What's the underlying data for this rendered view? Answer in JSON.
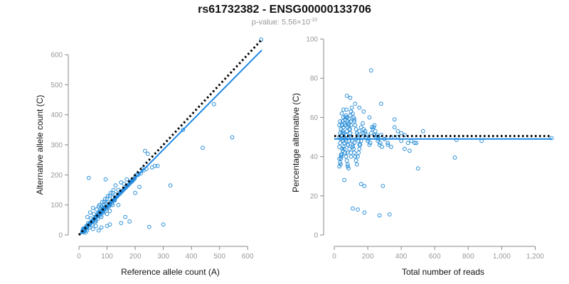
{
  "header": {
    "title": "rs61732382 - ENSG00000133706",
    "pvalue_prefix": "p-value: 5.56×10",
    "pvalue_exponent": "-10"
  },
  "colors": {
    "points": "#2b8fd8",
    "fit_line": "#1e88e5",
    "reference_line": "#000000",
    "axis": "#888888",
    "tick_text": "#999999"
  },
  "chart_data": [
    {
      "type": "scatter",
      "title": "",
      "xlabel": "Reference allele count (A)",
      "ylabel": "Alternative allele count (C)",
      "xlim": [
        0,
        650
      ],
      "ylim": [
        0,
        600
      ],
      "xticks": [
        0,
        100,
        200,
        300,
        400,
        500,
        600
      ],
      "xtick_labels": [
        "0",
        "100",
        "200",
        "300",
        "400",
        "500",
        "600"
      ],
      "yticks": [
        0,
        100,
        200,
        300,
        400,
        500,
        600
      ],
      "ytick_labels": [
        "0",
        "100",
        "200",
        "300",
        "400",
        "500",
        "600"
      ],
      "grid": false,
      "reference_line": {
        "style": "dotted",
        "x": [
          0,
          650
        ],
        "y": [
          0,
          650
        ]
      },
      "fit_line": {
        "x": [
          0,
          650
        ],
        "y": [
          0,
          615
        ]
      },
      "points": {
        "x": [
          648,
          480,
          545,
          440,
          370,
          250,
          300,
          325,
          280,
          240,
          235,
          245,
          210,
          220,
          200,
          170,
          190,
          150,
          160,
          130,
          140,
          120,
          110,
          100,
          105,
          95,
          90,
          80,
          85,
          75,
          70,
          65,
          60,
          55,
          50,
          45,
          40,
          35,
          30,
          25,
          20,
          15,
          12,
          35,
          95,
          60,
          110,
          150,
          165,
          180,
          200,
          215,
          230,
          260,
          270,
          50,
          70,
          80,
          100,
          120,
          130,
          140,
          45,
          55,
          65,
          75,
          85,
          90,
          100,
          110,
          125,
          150,
          185,
          205,
          225,
          25,
          30,
          35,
          40,
          45,
          50,
          55,
          60,
          65,
          70,
          75,
          80,
          85,
          90,
          20,
          22,
          24,
          26,
          28,
          30,
          32,
          34,
          36,
          38,
          40,
          42,
          44,
          48,
          52,
          56,
          58,
          62,
          66,
          68,
          72,
          76,
          78,
          82,
          86,
          88,
          92,
          96,
          98,
          102,
          106,
          108,
          112,
          116,
          118,
          122,
          126,
          128,
          132,
          136,
          138,
          142,
          146,
          148,
          152,
          156,
          158,
          162,
          166,
          168,
          172,
          176,
          178,
          182,
          186,
          188,
          192,
          196,
          198,
          30,
          40,
          50,
          60,
          70,
          80,
          90,
          100,
          110,
          120,
          15,
          18,
          22,
          25,
          28,
          14,
          16,
          19,
          21,
          23,
          13,
          17,
          26,
          29,
          33,
          37,
          43,
          47,
          53,
          57,
          63,
          67,
          73,
          77,
          83,
          87,
          93,
          97,
          103,
          107,
          113,
          117,
          123,
          127
        ],
        "y": [
          650,
          435,
          325,
          290,
          350,
          27,
          35,
          165,
          230,
          220,
          280,
          270,
          200,
          205,
          195,
          185,
          180,
          175,
          170,
          165,
          150,
          140,
          130,
          120,
          110,
          105,
          100,
          95,
          90,
          80,
          75,
          68,
          62,
          55,
          50,
          45,
          40,
          35,
          30,
          25,
          20,
          15,
          12,
          190,
          185,
          30,
          35,
          40,
          60,
          45,
          140,
          160,
          215,
          225,
          230,
          20,
          15,
          25,
          30,
          125,
          135,
          100,
          42,
          50,
          62,
          70,
          78,
          85,
          92,
          100,
          115,
          145,
          180,
          200,
          220,
          22,
          28,
          33,
          38,
          44,
          49,
          55,
          60,
          66,
          71,
          76,
          82,
          87,
          92,
          17,
          19,
          21,
          24,
          26,
          28,
          30,
          32,
          34,
          36,
          38,
          40,
          42,
          46,
          50,
          54,
          56,
          59,
          63,
          65,
          69,
          72,
          74,
          78,
          82,
          84,
          88,
          91,
          93,
          97,
          101,
          103,
          106,
          110,
          112,
          116,
          119,
          121,
          125,
          129,
          131,
          135,
          138,
          140,
          144,
          148,
          150,
          154,
          157,
          159,
          163,
          167,
          169,
          173,
          176,
          178,
          182,
          186,
          188,
          60,
          75,
          90,
          45,
          95,
          60,
          110,
          70,
          80,
          100,
          10,
          14,
          18,
          20,
          24,
          18,
          22,
          12,
          16,
          8,
          10,
          20,
          30,
          15,
          40,
          25,
          55,
          35,
          70,
          45,
          85,
          55,
          100,
          65,
          110,
          75,
          120,
          85,
          130,
          95,
          140,
          105,
          150,
          115
        ]
      }
    },
    {
      "type": "scatter",
      "title": "",
      "xlabel": "Total number of reads",
      "ylabel": "Percentage alternative (C)",
      "xlim": [
        0,
        1300
      ],
      "ylim": [
        0,
        100
      ],
      "xticks": [
        0,
        200,
        400,
        600,
        800,
        1000,
        1200
      ],
      "xtick_labels": [
        "0",
        "200",
        "400",
        "600",
        "800",
        "1,000",
        "1,200"
      ],
      "yticks": [
        0,
        20,
        40,
        60,
        80,
        100
      ],
      "ytick_labels": [
        "0",
        "20",
        "40",
        "60",
        "80",
        "100"
      ],
      "grid": false,
      "reference_line": {
        "style": "dotted",
        "x": [
          0,
          1300
        ],
        "y": [
          50.5,
          50.5
        ]
      },
      "fit_line": {
        "x": [
          0,
          1300
        ],
        "y": [
          49,
          49
        ]
      },
      "points": {
        "x": [
          1298,
          880,
          730,
          720,
          530,
          500,
          480,
          460,
          440,
          420,
          400,
          380,
          360,
          340,
          320,
          300,
          280,
          260,
          240,
          220,
          200,
          180,
          160,
          140,
          120,
          100,
          80,
          60,
          40,
          30,
          225,
          270,
          330,
          290,
          180,
          110,
          210,
          175,
          150,
          125,
          95,
          75,
          55,
          45,
          35,
          30,
          40,
          50,
          60,
          70,
          80,
          90,
          100,
          110,
          120,
          130,
          140,
          150,
          160,
          170,
          180,
          190,
          200,
          210,
          220,
          230,
          240,
          250,
          260,
          270,
          280,
          300,
          320,
          340,
          360,
          380,
          400,
          420,
          450,
          490,
          30,
          35,
          40,
          45,
          50,
          55,
          60,
          65,
          70,
          75,
          80,
          85,
          90,
          95,
          100,
          105,
          110,
          115,
          120,
          125,
          130,
          135,
          140,
          145,
          150,
          155,
          160,
          165,
          170,
          175,
          185,
          195,
          205,
          215,
          235,
          245,
          255,
          265,
          275,
          285,
          30,
          35,
          40,
          45,
          50,
          55,
          60,
          65,
          70,
          75,
          80,
          85,
          90,
          95,
          100,
          105,
          110,
          115,
          120,
          125,
          130,
          135,
          140,
          145,
          150,
          30,
          35,
          40,
          45,
          50,
          55,
          60,
          65,
          70,
          75,
          80,
          85,
          90,
          95,
          100,
          38,
          42,
          47,
          52,
          58,
          63,
          68,
          73,
          78,
          83,
          88,
          93,
          98
        ],
        "y": [
          49.5,
          48,
          48.5,
          39.5,
          53,
          34,
          47,
          48,
          47,
          51,
          52,
          53,
          59,
          50,
          46,
          49,
          67,
          50,
          51,
          84,
          48,
          11.5,
          26,
          13,
          59,
          40,
          35,
          28,
          41,
          39,
          55,
          10,
          10.5,
          25,
          25,
          13.5,
          60,
          63,
          65,
          67,
          70,
          71,
          64,
          62,
          58,
          56,
          54,
          52,
          50,
          48,
          46,
          44,
          42,
          45,
          47,
          49,
          51,
          53,
          55,
          57,
          52,
          50,
          48,
          46,
          52,
          54,
          56,
          50,
          48,
          46,
          51,
          49,
          47,
          45,
          55,
          50,
          48,
          44,
          43,
          47,
          45,
          47,
          49,
          51,
          53,
          55,
          57,
          59,
          61,
          60,
          58,
          56,
          54,
          52,
          50,
          48,
          46,
          44,
          42,
          40,
          38,
          36,
          40,
          42,
          44,
          46,
          48,
          50,
          52,
          54,
          53,
          51,
          49,
          47,
          55,
          53,
          51,
          49,
          47,
          45,
          35,
          37,
          39,
          41,
          43,
          45,
          47,
          49,
          51,
          53,
          55,
          57,
          59,
          61,
          63,
          65,
          62,
          60,
          58,
          56,
          54,
          52,
          50,
          48,
          46,
          50,
          52,
          54,
          56,
          58,
          60,
          44,
          42,
          40,
          38,
          36,
          34,
          48,
          52,
          56,
          36,
          40,
          44,
          48,
          52,
          56,
          60,
          64,
          42,
          46,
          50,
          54,
          58
        ]
      }
    }
  ]
}
